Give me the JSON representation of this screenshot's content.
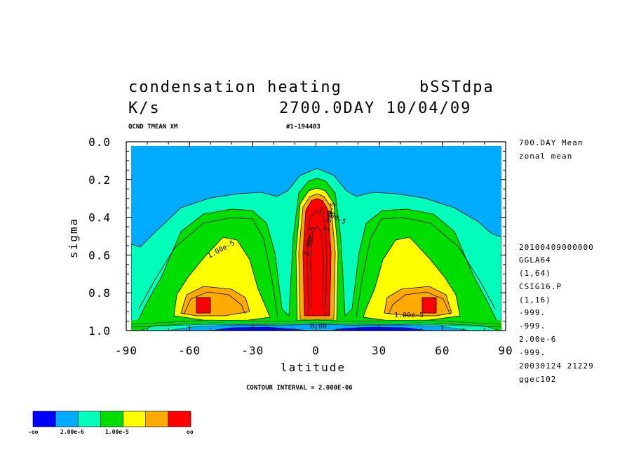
{
  "chart_data": {
    "type": "contour",
    "title_line1_left": "condensation heating",
    "title_line1_right": "bSSTdpa",
    "title_line2_left": "K/s",
    "title_line2_right": "2700.0DAY 10/04/09",
    "subtitle_left": "QCND TMEAN XM",
    "subtitle_right": "#1-194403",
    "xlabel": "latitude",
    "ylabel": "sigma",
    "xlim": [
      -90,
      90
    ],
    "ylim": [
      0.0,
      1.0
    ],
    "y_inverted": true,
    "x_ticks": [
      "-90",
      "-60",
      "-30",
      "0",
      "30",
      "60",
      "90"
    ],
    "x_tick_values": [
      -90,
      -60,
      -30,
      0,
      30,
      60,
      90
    ],
    "y_ticks": [
      "0.0",
      "0.2",
      "0.4",
      "0.6",
      "0.8",
      "1.0"
    ],
    "y_tick_values": [
      0.0,
      0.2,
      0.4,
      0.6,
      0.8,
      1.0
    ],
    "contour_interval_text": "CONTOUR INTERVAL = 2.000E-06",
    "contour_labels": [
      "1.00e-5",
      "2.00e-5",
      "1.00e-5",
      "2.00e-5",
      "1.00e-5",
      "0.00"
    ],
    "levels": [
      {
        "name": "-oo",
        "color": "#0000ff"
      },
      {
        "name": "2.00e-6",
        "color": "#00aaff"
      },
      {
        "name": "1.00e-5",
        "color": "#00ffbb"
      },
      {
        "name": "",
        "color": "#00dd00"
      },
      {
        "name": "",
        "color": "#ffff00"
      },
      {
        "name": "",
        "color": "#ffaa00"
      },
      {
        "name": "oo",
        "color": "#ff0000"
      }
    ],
    "colorbar_labels": [
      "-oo",
      "2.00e-6",
      "1.00e-5",
      "oo"
    ],
    "features": [
      {
        "name": "equatorial maximum",
        "lat": 0,
        "sigma": 0.55,
        "level": "red"
      },
      {
        "name": "southern midlatitude maximum",
        "lat": -55,
        "sigma": 0.87,
        "level": "red"
      },
      {
        "name": "northern midlatitude maximum",
        "lat": 55,
        "sigma": 0.87,
        "level": "red"
      }
    ]
  },
  "side_info": {
    "top": [
      "700.DAY Mean",
      "zonal mean"
    ],
    "bottom": [
      "20100409000000",
      "GGLA64",
      "(1,64)",
      "CSIG16.P",
      "(1,16)",
      "-999.",
      "-999.",
      "2.00e-6",
      "-999.",
      "20030124  21229",
      "ggec102"
    ]
  }
}
